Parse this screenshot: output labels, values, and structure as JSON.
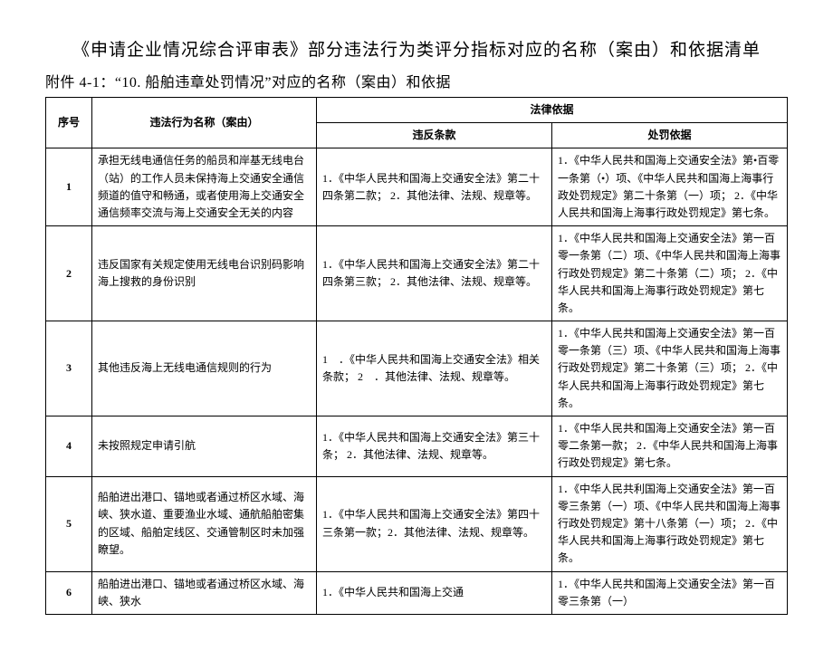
{
  "title": "《申请企业情况综合评审表》部分违法行为类评分指标对应的名称（案由）和依据清单",
  "subtitle": "附件 4-1：“10. 船舶违章处罚情况”对应的名称（案由）和依据",
  "columns": {
    "seq": "序号",
    "case": "违法行为名称（案由）",
    "legal_basis_group": "法律依据",
    "violation": "违反条款",
    "penalty": "处罚依据"
  },
  "rows": [
    {
      "seq": "1",
      "case": "承担无线电通信任务的船员和岸基无线电台（站）的工作人员未保持海上交通安全通信频道的值守和畅通，或者使用海上交通安全通信频率交流与海上交通安全无关的内容",
      "violation": "1．《中华人民共和国海上交通安全法》第二十四条第二款；\n2．其他法律、法规、规章等。",
      "penalty": "1．《中华人民共和国海上交通安全法》第•百零一条第（•）项、《中华人民共和国海上海事行政处罚规定》第二十条第（一）项；\n2．《中华人民共和国海上海事行政处罚规定》第七条。"
    },
    {
      "seq": "2",
      "case": "违反国家有关规定使用无线电台识别码影响海上搜救的身份识别",
      "violation": "1．《中华人民共和国海上交通安全法》第二十四条第三款；\n2．其他法律、法规、规章等。",
      "penalty": "1．《中华人民共和国海上交通安全法》第一百零一条第（二）项、《中华人民共和国海上海事行政处罚规定》第二十条第（二）项；\n2．《中华人民共和国海上海事行政处罚规定》第七条。"
    },
    {
      "seq": "3",
      "case": "其他违反海上无线电通信规则的行为",
      "violation": "1　．《中华人民共和国海上交通安全法》相关条款；\n2　．其他法律、法规、规章等。",
      "penalty": "1．《中华人民共和国海上交通安全法》第一百零一条第（三）项、《中华人民共和国海上海事行政处罚规定》第二十条第（三）项；\n2．《中华人民共和国海上海事行政处罚规定》第七条。"
    },
    {
      "seq": "4",
      "case": "未按照规定申请引航",
      "violation": "1．《中华人民共和国海上交通安全法》第三十条；\n2．其他法律、法规、规章等。",
      "penalty": "1．《中华人民共和国海上交通安全法》第一百零二条第一款；\n2．《中华人民共和国海上海事行政处罚规定》第七条。"
    },
    {
      "seq": "5",
      "case": "船舶进出港口、锚地或者通过桥区水域、海峡、狭水道、重要渔业水域、通航船舶密集的区域、船舶定线区、交通管制区时未加强瞭望。",
      "violation": "1．《中华人民共和国海上交通安全法》第四十三条第一款；2．其他法律、法规、规章等。",
      "penalty": "1．《中华人民共利国海上交通安全法》第一百零三条第（一）项、《中华人民共和国海上海事行政处罚规定》第十八条第（一）项；\n2．《中华人民共和国海上海事行政处罚规定》第七条。"
    },
    {
      "seq": "6",
      "case": "船舶进出港口、锚地或者通过桥区水域、海峡、狭水",
      "violation": "1．《中华人民共和国海上交通",
      "penalty": "1．《中华人民共和国海上交通安全法》第一百零三条第（一）"
    }
  ]
}
